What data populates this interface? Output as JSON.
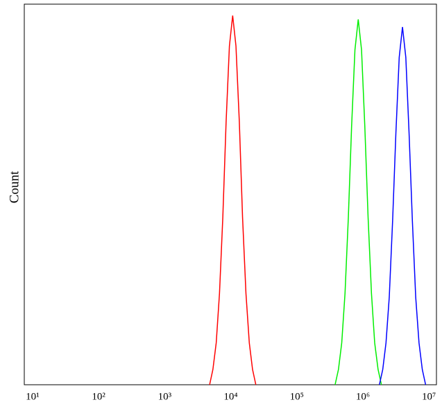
{
  "chart_data": {
    "type": "line",
    "y_label": "Count",
    "xscale": "log",
    "xlim": [
      7.5,
      13000000
    ],
    "ylim": [
      0,
      100
    ],
    "xticks": [
      {
        "value": 10,
        "label": "10¹"
      },
      {
        "value": 100,
        "label": "10²"
      },
      {
        "value": 1000,
        "label": "10³"
      },
      {
        "value": 10000,
        "label": "10⁴"
      },
      {
        "value": 100000,
        "label": "10⁵"
      },
      {
        "value": 1000000,
        "label": "10⁶"
      },
      {
        "value": 10000000,
        "label": "10⁷"
      }
    ],
    "series": [
      {
        "color": "#ff0000",
        "x": [
          4790,
          5370,
          6030,
          6760,
          7590,
          8510,
          9550,
          10700,
          12000,
          13500,
          15100,
          17000,
          19100,
          21400,
          24000
        ],
        "values": [
          0,
          4,
          11,
          24,
          44,
          69,
          89,
          97,
          89,
          69,
          44,
          24,
          11,
          4,
          0
        ]
      },
      {
        "color": "#00ee00",
        "x": [
          380000,
          427000,
          479000,
          537000,
          603000,
          676000,
          759000,
          851000,
          955000,
          1070000,
          1200000,
          1350000,
          1510000,
          1700000,
          1910000
        ],
        "values": [
          0,
          4,
          11,
          24,
          44,
          68,
          88,
          96,
          88,
          68,
          44,
          24,
          11,
          4,
          0
        ]
      },
      {
        "color": "#0000ff",
        "x": [
          1780000,
          2000000,
          2240000,
          2510000,
          2820000,
          3160000,
          3550000,
          3980000,
          4470000,
          5010000,
          5620000,
          6310000,
          7080000,
          7940000,
          8910000
        ],
        "values": [
          0,
          4,
          11,
          23,
          43,
          66,
          86,
          94,
          86,
          66,
          43,
          23,
          11,
          4,
          0
        ]
      }
    ]
  }
}
